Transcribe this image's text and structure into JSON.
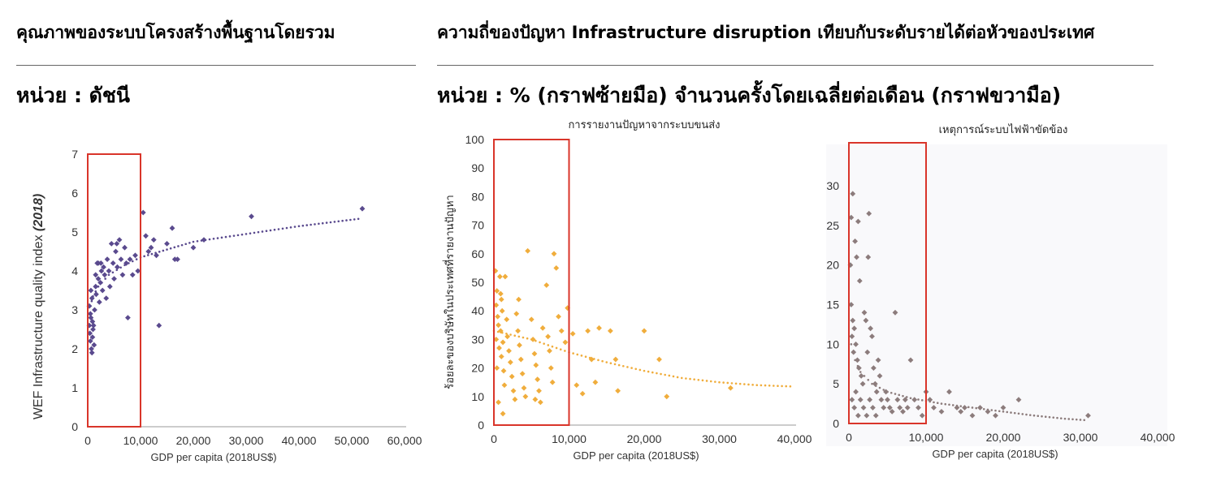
{
  "left_panel": {
    "heading": "คุณภาพของระบบโครงสร้างพื้นฐานโดยรวม",
    "unit": "หน่วย : ดัชนี"
  },
  "right_panel": {
    "heading": "ความถี่ของปัญหา Infrastructure disruption เทียบกับระดับรายได้ต่อหัวของประเทศ",
    "unit": "หน่วย : % (กราฟซ้ายมือ) จำนวนครั้งโดยเฉลี่ยต่อเดือน (กราฟขวามือ)"
  },
  "colors": {
    "wef": "#5a4a8e",
    "firms": "#f0ad3c",
    "power": "#8c7c7c",
    "highlight_box": "#d9352a"
  },
  "chart_data": [
    {
      "type": "scatter",
      "title": "",
      "xlabel": "GDP per capita (2018US$)",
      "ylabel": "WEF Infrastructure quality index",
      "ylabel_suffix": "(2018)",
      "xlim": [
        0,
        60000
      ],
      "ylim": [
        0,
        7
      ],
      "x_ticks": [
        0,
        10000,
        20000,
        30000,
        40000,
        50000,
        60000
      ],
      "x_tick_labels": [
        "0",
        "10,000",
        "20,000",
        "30,000",
        "40,000",
        "50,000",
        "60,000"
      ],
      "y_ticks": [
        0,
        1,
        2,
        3,
        4,
        5,
        6,
        7
      ],
      "y_tick_labels": [
        "0",
        "1",
        "2",
        "3",
        "4",
        "5",
        "6",
        "7"
      ],
      "grid": false,
      "highlight_range": [
        0,
        10000
      ],
      "trendline": "logarithmic",
      "trend_points": [
        [
          500,
          3.1
        ],
        [
          1000,
          3.35
        ],
        [
          2000,
          3.6
        ],
        [
          4000,
          3.9
        ],
        [
          7000,
          4.15
        ],
        [
          10000,
          4.35
        ],
        [
          15000,
          4.55
        ],
        [
          20000,
          4.75
        ],
        [
          30000,
          4.95
        ],
        [
          40000,
          5.15
        ],
        [
          52000,
          5.35
        ]
      ],
      "points": [
        [
          300,
          2.6
        ],
        [
          400,
          2.4
        ],
        [
          500,
          2.2
        ],
        [
          600,
          2.8
        ],
        [
          700,
          2.0
        ],
        [
          800,
          1.9
        ],
        [
          900,
          2.3
        ],
        [
          1000,
          2.5
        ],
        [
          300,
          3.1
        ],
        [
          500,
          2.9
        ],
        [
          600,
          3.5
        ],
        [
          800,
          3.3
        ],
        [
          900,
          2.7
        ],
        [
          1100,
          2.6
        ],
        [
          1200,
          2.1
        ],
        [
          1300,
          3.0
        ],
        [
          1500,
          3.6
        ],
        [
          1600,
          3.4
        ],
        [
          1800,
          4.2
        ],
        [
          2000,
          3.8
        ],
        [
          2200,
          3.2
        ],
        [
          2400,
          3.7
        ],
        [
          2600,
          4.0
        ],
        [
          2800,
          3.5
        ],
        [
          3000,
          4.1
        ],
        [
          3200,
          3.9
        ],
        [
          3500,
          3.3
        ],
        [
          3700,
          4.3
        ],
        [
          4000,
          4.0
        ],
        [
          4200,
          3.6
        ],
        [
          4500,
          4.7
        ],
        [
          4800,
          4.2
        ],
        [
          5000,
          3.8
        ],
        [
          5300,
          4.5
        ],
        [
          5600,
          4.1
        ],
        [
          6000,
          4.8
        ],
        [
          6300,
          4.3
        ],
        [
          6600,
          3.9
        ],
        [
          7000,
          4.6
        ],
        [
          7300,
          4.2
        ],
        [
          7600,
          2.8
        ],
        [
          8000,
          4.3
        ],
        [
          8500,
          3.9
        ],
        [
          9000,
          4.4
        ],
        [
          9500,
          4.0
        ],
        [
          10500,
          5.5
        ],
        [
          11000,
          4.9
        ],
        [
          11500,
          4.5
        ],
        [
          12000,
          4.6
        ],
        [
          12500,
          4.8
        ],
        [
          13000,
          4.4
        ],
        [
          13500,
          2.6
        ],
        [
          15000,
          4.7
        ],
        [
          16000,
          5.1
        ],
        [
          16500,
          4.3
        ],
        [
          17000,
          4.3
        ],
        [
          20000,
          4.6
        ],
        [
          22000,
          4.8
        ],
        [
          31000,
          5.4
        ],
        [
          52000,
          5.6
        ],
        [
          2000,
          4.2
        ],
        [
          1500,
          3.9
        ],
        [
          2500,
          4.2
        ],
        [
          5500,
          4.7
        ]
      ]
    },
    {
      "type": "scatter",
      "title": "การรายงานปัญหาจากระบบขนส่ง",
      "xlabel": "GDP per capita (2018US$)",
      "ylabel": "ร้อยละของบริษัทในประเทศที่รายงานปัญหา",
      "xlim": [
        0,
        40000
      ],
      "ylim": [
        0,
        100
      ],
      "x_ticks": [
        0,
        10000,
        20000,
        30000,
        40000
      ],
      "x_tick_labels": [
        "0",
        "10,000",
        "20,000",
        "30,000",
        "40,000"
      ],
      "y_ticks": [
        0,
        10,
        20,
        30,
        40,
        50,
        60,
        70,
        80,
        90,
        100
      ],
      "y_tick_labels": [
        "0",
        "10",
        "20",
        "30",
        "40",
        "50",
        "60",
        "70",
        "80",
        "90",
        "100"
      ],
      "grid": false,
      "highlight_range": [
        0,
        10000
      ],
      "trendline": "exponential",
      "trend_points": [
        [
          0,
          33
        ],
        [
          5000,
          30
        ],
        [
          10000,
          25.5
        ],
        [
          15000,
          22
        ],
        [
          20000,
          19
        ],
        [
          25000,
          16.5
        ],
        [
          30000,
          15
        ],
        [
          35000,
          14
        ],
        [
          40000,
          13.5
        ]
      ],
      "points": [
        [
          200,
          54
        ],
        [
          400,
          47
        ],
        [
          300,
          42
        ],
        [
          500,
          38
        ],
        [
          600,
          35
        ],
        [
          300,
          30
        ],
        [
          700,
          27
        ],
        [
          400,
          20
        ],
        [
          800,
          52
        ],
        [
          1000,
          44
        ],
        [
          1100,
          40
        ],
        [
          900,
          33
        ],
        [
          1200,
          29
        ],
        [
          1000,
          24
        ],
        [
          1300,
          19
        ],
        [
          1400,
          14
        ],
        [
          1500,
          52
        ],
        [
          1700,
          37
        ],
        [
          1800,
          31
        ],
        [
          2000,
          26
        ],
        [
          2200,
          22
        ],
        [
          2400,
          17
        ],
        [
          2600,
          12
        ],
        [
          2800,
          9
        ],
        [
          3000,
          39
        ],
        [
          3200,
          33
        ],
        [
          3400,
          28
        ],
        [
          3600,
          23
        ],
        [
          3800,
          18
        ],
        [
          4000,
          13
        ],
        [
          4200,
          10
        ],
        [
          4500,
          61
        ],
        [
          5000,
          37
        ],
        [
          5200,
          30
        ],
        [
          5400,
          25
        ],
        [
          5600,
          21
        ],
        [
          5800,
          16
        ],
        [
          6000,
          12
        ],
        [
          6200,
          8
        ],
        [
          6500,
          34
        ],
        [
          7000,
          49
        ],
        [
          7200,
          31
        ],
        [
          7400,
          26
        ],
        [
          7600,
          20
        ],
        [
          7800,
          15
        ],
        [
          8000,
          60
        ],
        [
          8300,
          55
        ],
        [
          8600,
          38
        ],
        [
          9000,
          33
        ],
        [
          9500,
          29
        ],
        [
          9800,
          41
        ],
        [
          10500,
          32
        ],
        [
          11000,
          14
        ],
        [
          11800,
          11
        ],
        [
          12500,
          33
        ],
        [
          13000,
          23
        ],
        [
          13500,
          15
        ],
        [
          14000,
          34
        ],
        [
          15500,
          33
        ],
        [
          16200,
          23
        ],
        [
          16500,
          12
        ],
        [
          20000,
          33
        ],
        [
          22000,
          23
        ],
        [
          23000,
          10
        ],
        [
          31500,
          13
        ],
        [
          600,
          8
        ],
        [
          1200,
          4
        ],
        [
          5500,
          9
        ],
        [
          900,
          46
        ],
        [
          3300,
          44
        ]
      ]
    },
    {
      "type": "scatter",
      "title": "เหตุการณ์ระบบไฟฟ้าขัดข้อง",
      "xlabel": "GDP per capita (2018US$)",
      "ylabel": "",
      "xlim": [
        0,
        40000
      ],
      "ylim": [
        0,
        34
      ],
      "x_ticks": [
        0,
        10000,
        20000,
        30000,
        40000
      ],
      "x_tick_labels": [
        "0",
        "10,000",
        "20,000",
        "30,000",
        "40,000"
      ],
      "y_ticks": [
        0,
        5,
        10,
        15,
        20,
        25,
        30
      ],
      "y_tick_labels": [
        "0",
        "5",
        "10",
        "15",
        "20",
        "25",
        "30"
      ],
      "grid": false,
      "highlight_range": [
        0,
        10000
      ],
      "trendline": "power",
      "trend_points": [
        [
          300,
          10
        ],
        [
          800,
          8
        ],
        [
          1500,
          6.5
        ],
        [
          3000,
          5
        ],
        [
          5000,
          4
        ],
        [
          8000,
          3.2
        ],
        [
          12000,
          2.5
        ],
        [
          16000,
          2
        ],
        [
          20000,
          1.5
        ],
        [
          24000,
          1
        ],
        [
          28000,
          0.6
        ],
        [
          31000,
          0.4
        ]
      ],
      "points": [
        [
          500,
          29
        ],
        [
          300,
          26
        ],
        [
          1200,
          25.5
        ],
        [
          2600,
          26.5
        ],
        [
          800,
          23
        ],
        [
          1000,
          21
        ],
        [
          2500,
          21
        ],
        [
          1400,
          18
        ],
        [
          200,
          20
        ],
        [
          300,
          15
        ],
        [
          500,
          13
        ],
        [
          700,
          12
        ],
        [
          400,
          11
        ],
        [
          900,
          10
        ],
        [
          600,
          9
        ],
        [
          1100,
          8
        ],
        [
          1300,
          7
        ],
        [
          1600,
          6
        ],
        [
          1800,
          5
        ],
        [
          2000,
          14
        ],
        [
          2200,
          13
        ],
        [
          2400,
          9
        ],
        [
          2800,
          12
        ],
        [
          3000,
          11
        ],
        [
          3200,
          7
        ],
        [
          3400,
          5
        ],
        [
          3600,
          4
        ],
        [
          3800,
          8
        ],
        [
          4000,
          6
        ],
        [
          4200,
          3
        ],
        [
          4500,
          2
        ],
        [
          4800,
          4
        ],
        [
          5000,
          3
        ],
        [
          5300,
          2
        ],
        [
          5600,
          1.5
        ],
        [
          6000,
          14
        ],
        [
          6300,
          3
        ],
        [
          6600,
          2
        ],
        [
          7000,
          1.5
        ],
        [
          7300,
          3
        ],
        [
          7600,
          2
        ],
        [
          8000,
          8
        ],
        [
          8500,
          3
        ],
        [
          9000,
          2
        ],
        [
          9500,
          1
        ],
        [
          10000,
          4
        ],
        [
          10500,
          3
        ],
        [
          11000,
          2
        ],
        [
          12000,
          1.5
        ],
        [
          13000,
          4
        ],
        [
          14000,
          2
        ],
        [
          14500,
          1.5
        ],
        [
          15000,
          2
        ],
        [
          16000,
          1
        ],
        [
          17000,
          2
        ],
        [
          18000,
          1.5
        ],
        [
          19000,
          1
        ],
        [
          20000,
          2
        ],
        [
          22000,
          3
        ],
        [
          31000,
          1
        ],
        [
          400,
          3
        ],
        [
          700,
          2
        ],
        [
          900,
          4
        ],
        [
          1200,
          1
        ],
        [
          1500,
          3
        ],
        [
          1900,
          2
        ],
        [
          2300,
          1
        ],
        [
          2700,
          3
        ],
        [
          3100,
          2
        ],
        [
          3500,
          1
        ]
      ]
    }
  ]
}
